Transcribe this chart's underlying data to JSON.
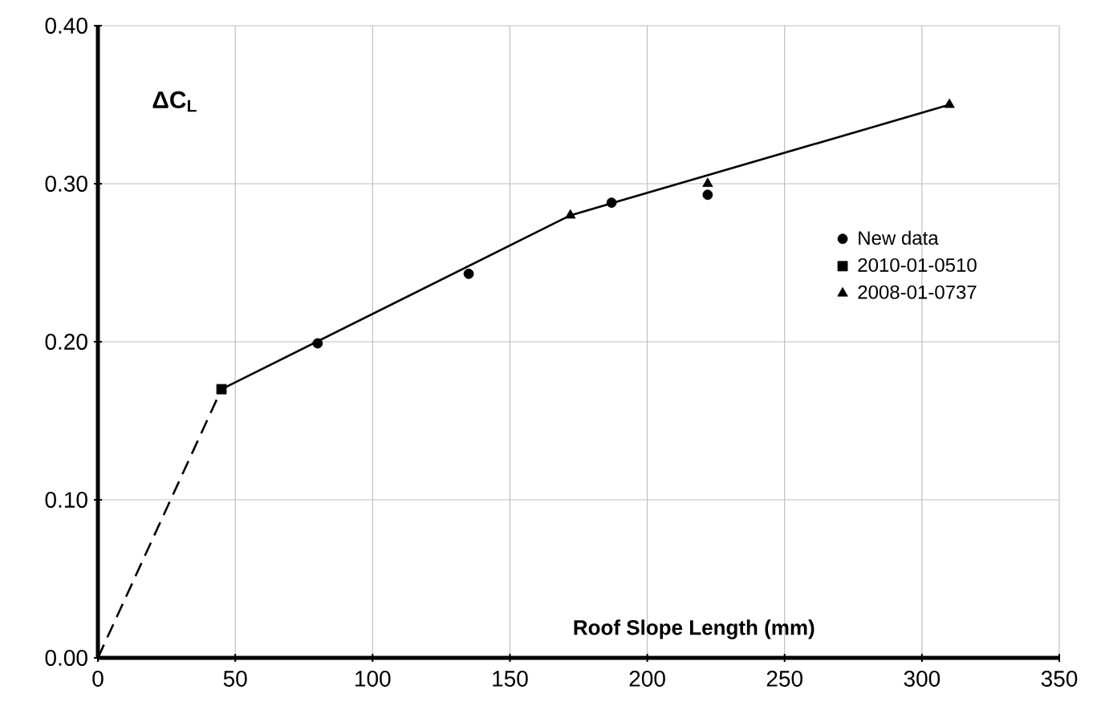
{
  "chart_data": {
    "type": "scatter",
    "xlabel": "Roof Slope Length (mm)",
    "ylabel": "ΔC$_{L}$",
    "xlim": [
      0,
      350
    ],
    "xticks": [
      0,
      50,
      100,
      150,
      200,
      250,
      300,
      350
    ],
    "ylim": [
      0,
      0.4
    ],
    "yticks": [
      {
        "value": 0,
        "label": "0.00"
      },
      {
        "value": 0.1,
        "label": "0.10"
      },
      {
        "value": 0.2,
        "label": "0.20"
      },
      {
        "value": 0.3,
        "label": "0.30"
      },
      {
        "value": 0.4,
        "label": "0.40"
      }
    ],
    "grid": true,
    "legend": "right",
    "series": [
      {
        "type": "line",
        "line_style": "solid",
        "color": "#000000",
        "x": [
          45,
          172,
          310
        ],
        "values": [
          0.17,
          0.28,
          0.35
        ]
      },
      {
        "type": "line",
        "line_style": "dashed",
        "color": "#000000",
        "x": [
          0,
          45
        ],
        "values": [
          0,
          0.17
        ]
      },
      {
        "name": "New data",
        "marker": "circle",
        "color": "#000000",
        "x": [
          80,
          135,
          187,
          222
        ],
        "values": [
          0.199,
          0.243,
          0.288,
          0.293
        ]
      },
      {
        "name": "2010-01-0510",
        "marker": "square",
        "color": "#000000",
        "x": [
          45
        ],
        "values": [
          0.17
        ]
      },
      {
        "name": "2008-01-0737",
        "marker": "triangle",
        "color": "#000000",
        "x": [
          172,
          222,
          310
        ],
        "values": [
          0.28,
          0.3,
          0.35
        ]
      }
    ]
  }
}
